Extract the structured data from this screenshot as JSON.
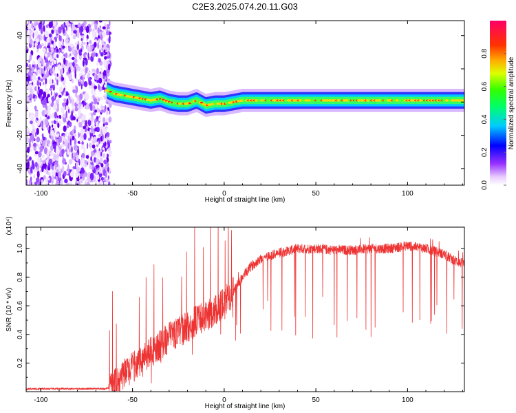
{
  "title": "C2E3.2025.074.20.11.G03",
  "chart_data": [
    {
      "type": "heatmap",
      "xlabel": "Height of straight line (km)",
      "ylabel": "Frequency (Hz)",
      "xlim": [
        -108,
        131
      ],
      "ylim": [
        -50,
        49
      ],
      "xticks": [
        -100,
        -50,
        0,
        50,
        100
      ],
      "yticks": [
        -40,
        -20,
        0,
        20,
        40
      ],
      "colorbar": {
        "label": "Normalized spectral amplitude",
        "range": [
          0,
          1
        ],
        "ticks": [
          "0.0",
          "0.2",
          "0.4",
          "0.6",
          "0.8"
        ],
        "colors": [
          "#ffffff",
          "#cc99ff",
          "#8800ff",
          "#0000ff",
          "#00ffff",
          "#00ff00",
          "#ffff00",
          "#ff8800",
          "#ff0000",
          "#ff0066"
        ]
      },
      "noise_region_x": [
        -108,
        -64
      ],
      "signal_track": {
        "x": [
          -64,
          -60,
          -55,
          -50,
          -45,
          -40,
          -35,
          -30,
          -25,
          -20,
          -15,
          -10,
          -5,
          0,
          5,
          10,
          20,
          40,
          60,
          80,
          100,
          131
        ],
        "y": [
          7,
          5,
          4,
          3,
          2,
          1,
          2,
          0,
          -1,
          -1,
          1,
          -2,
          -1,
          -1,
          0,
          1,
          1,
          1,
          1,
          1,
          1,
          1
        ]
      }
    },
    {
      "type": "line",
      "xlabel": "Height of straight line (km)",
      "ylabel": "SNR (10 * v/v)",
      "yscale_label": "(x10⁴)",
      "xlim": [
        -108,
        131
      ],
      "ylim": [
        0,
        1.15
      ],
      "xticks": [
        -100,
        -50,
        0,
        50,
        100
      ],
      "yticks": [
        "0.2",
        "0.4",
        "0.6",
        "0.8",
        "1.0"
      ],
      "color": "#ee3333",
      "envelope": {
        "x": [
          -108,
          -65,
          -62,
          -58,
          -55,
          -50,
          -45,
          -40,
          -35,
          -30,
          -25,
          -20,
          -15,
          -10,
          -5,
          0,
          5,
          10,
          15,
          20,
          30,
          40,
          50,
          60,
          70,
          80,
          90,
          100,
          110,
          120,
          125,
          131
        ],
        "y": [
          0.02,
          0.02,
          0.03,
          0.08,
          0.12,
          0.17,
          0.22,
          0.28,
          0.32,
          0.38,
          0.42,
          0.45,
          0.5,
          0.52,
          0.57,
          0.62,
          0.7,
          0.8,
          0.88,
          0.93,
          0.97,
          1.0,
          1.0,
          0.99,
          0.99,
          1.0,
          1.0,
          1.02,
          1.0,
          0.96,
          0.92,
          0.89
        ]
      }
    }
  ]
}
